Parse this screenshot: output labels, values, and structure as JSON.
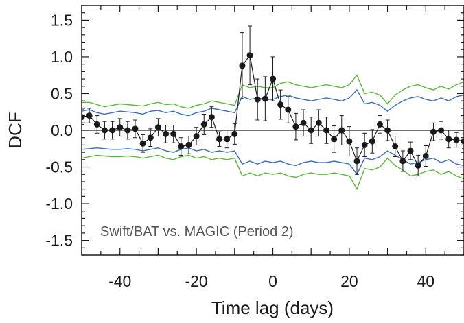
{
  "chart_data": {
    "type": "scatter",
    "xlabel": "Time lag (days)",
    "ylabel": "DCF",
    "annotation": "Swift/BAT vs. MAGIC (Period 2)",
    "xlim": [
      -50,
      50
    ],
    "ylim": [
      -1.7,
      1.7
    ],
    "x_ticks": [
      -40,
      -20,
      0,
      20,
      40
    ],
    "x_tick_labels": [
      "-40",
      "-20",
      "0",
      "20",
      "40"
    ],
    "y_ticks": [
      -1.5,
      -1.0,
      -0.5,
      0.0,
      0.5,
      1.0,
      1.5
    ],
    "y_tick_labels": [
      "-1.5",
      "-1.0",
      "-0.5",
      "0.0",
      "0.5",
      "1.0",
      "1.5"
    ],
    "zero_line": true,
    "grid": false,
    "colors": {
      "dcf": "#1a1a1a",
      "blue_band": "#3a6fc0",
      "green_band": "#5cb83a"
    },
    "dcf_points": [
      {
        "x": -50,
        "y": 0.18,
        "err": 0.1
      },
      {
        "x": -48,
        "y": 0.2,
        "err": 0.1
      },
      {
        "x": -46,
        "y": 0.08,
        "err": 0.12
      },
      {
        "x": -44,
        "y": 0.0,
        "err": 0.12
      },
      {
        "x": -42,
        "y": 0.0,
        "err": 0.12
      },
      {
        "x": -40,
        "y": 0.04,
        "err": 0.12
      },
      {
        "x": -38,
        "y": 0.0,
        "err": 0.12
      },
      {
        "x": -36,
        "y": 0.02,
        "err": 0.12
      },
      {
        "x": -34,
        "y": -0.18,
        "err": 0.12
      },
      {
        "x": -32,
        "y": -0.1,
        "err": 0.12
      },
      {
        "x": -30,
        "y": 0.04,
        "err": 0.12
      },
      {
        "x": -28,
        "y": -0.05,
        "err": 0.12
      },
      {
        "x": -26,
        "y": -0.05,
        "err": 0.12
      },
      {
        "x": -24,
        "y": -0.22,
        "err": 0.12
      },
      {
        "x": -22,
        "y": -0.2,
        "err": 0.12
      },
      {
        "x": -20,
        "y": -0.08,
        "err": 0.12
      },
      {
        "x": -18,
        "y": 0.08,
        "err": 0.14
      },
      {
        "x": -16,
        "y": 0.18,
        "err": 0.14
      },
      {
        "x": -14,
        "y": -0.12,
        "err": 0.1
      },
      {
        "x": -12,
        "y": -0.12,
        "err": 0.12
      },
      {
        "x": -10,
        "y": -0.05,
        "err": 0.14
      },
      {
        "x": -8,
        "y": 0.88,
        "err": 0.45
      },
      {
        "x": -6,
        "y": 1.02,
        "err": 0.4
      },
      {
        "x": -4,
        "y": 0.42,
        "err": 0.28
      },
      {
        "x": -2,
        "y": 0.43,
        "err": 0.3
      },
      {
        "x": 0,
        "y": 0.7,
        "err": 0.3
      },
      {
        "x": 2,
        "y": 0.35,
        "err": 0.2
      },
      {
        "x": 4,
        "y": 0.28,
        "err": 0.18
      },
      {
        "x": 6,
        "y": 0.05,
        "err": 0.18
      },
      {
        "x": 8,
        "y": 0.1,
        "err": 0.18
      },
      {
        "x": 10,
        "y": 0.0,
        "err": 0.18
      },
      {
        "x": 12,
        "y": 0.1,
        "err": 0.18
      },
      {
        "x": 14,
        "y": 0.0,
        "err": 0.18
      },
      {
        "x": 16,
        "y": -0.12,
        "err": 0.18
      },
      {
        "x": 18,
        "y": 0.0,
        "err": 0.2
      },
      {
        "x": 20,
        "y": -0.15,
        "err": 0.2
      },
      {
        "x": 22,
        "y": -0.42,
        "err": 0.18
      },
      {
        "x": 24,
        "y": -0.2,
        "err": 0.16
      },
      {
        "x": 26,
        "y": -0.15,
        "err": 0.16
      },
      {
        "x": 28,
        "y": 0.08,
        "err": 0.12
      },
      {
        "x": 30,
        "y": 0.0,
        "err": 0.14
      },
      {
        "x": 32,
        "y": -0.22,
        "err": 0.14
      },
      {
        "x": 34,
        "y": -0.42,
        "err": 0.14
      },
      {
        "x": 36,
        "y": -0.28,
        "err": 0.12
      },
      {
        "x": 38,
        "y": -0.48,
        "err": 0.14
      },
      {
        "x": 40,
        "y": -0.35,
        "err": 0.14
      },
      {
        "x": 42,
        "y": -0.02,
        "err": 0.12
      },
      {
        "x": 44,
        "y": 0.0,
        "err": 0.12
      },
      {
        "x": 46,
        "y": -0.12,
        "err": 0.12
      },
      {
        "x": 48,
        "y": -0.13,
        "err": 0.1
      },
      {
        "x": 50,
        "y": -0.15,
        "err": 0.1
      }
    ],
    "confidence_bands": [
      {
        "color": "green",
        "x": [
          -50,
          -48,
          -46,
          -44,
          -42,
          -40,
          -38,
          -36,
          -34,
          -32,
          -30,
          -28,
          -26,
          -24,
          -22,
          -20,
          -18,
          -16,
          -14,
          -12,
          -10,
          -8,
          -6,
          -4,
          -2,
          0,
          2,
          4,
          6,
          8,
          10,
          12,
          14,
          16,
          18,
          20,
          22,
          24,
          26,
          28,
          30,
          32,
          34,
          36,
          38,
          40,
          42,
          44,
          46,
          48,
          50
        ],
        "upper": [
          0.38,
          0.38,
          0.35,
          0.32,
          0.34,
          0.36,
          0.35,
          0.34,
          0.33,
          0.36,
          0.38,
          0.35,
          0.36,
          0.32,
          0.3,
          0.34,
          0.36,
          0.4,
          0.38,
          0.36,
          0.34,
          0.62,
          0.58,
          0.6,
          0.58,
          0.58,
          0.64,
          0.66,
          0.62,
          0.6,
          0.58,
          0.6,
          0.62,
          0.6,
          0.58,
          0.62,
          0.75,
          0.5,
          0.52,
          0.48,
          0.36,
          0.48,
          0.55,
          0.6,
          0.62,
          0.58,
          0.55,
          0.6,
          0.56,
          0.62,
          0.66
        ],
        "lower": [
          -0.38,
          -0.36,
          -0.34,
          -0.35,
          -0.36,
          -0.36,
          -0.35,
          -0.36,
          -0.38,
          -0.36,
          -0.34,
          -0.38,
          -0.4,
          -0.36,
          -0.34,
          -0.38,
          -0.36,
          -0.4,
          -0.38,
          -0.4,
          -0.38,
          -0.62,
          -0.58,
          -0.62,
          -0.58,
          -0.6,
          -0.58,
          -0.62,
          -0.64,
          -0.6,
          -0.58,
          -0.6,
          -0.6,
          -0.58,
          -0.6,
          -0.62,
          -0.8,
          -0.52,
          -0.54,
          -0.5,
          -0.38,
          -0.48,
          -0.54,
          -0.62,
          -0.6,
          -0.56,
          -0.54,
          -0.6,
          -0.56,
          -0.62,
          -0.66
        ]
      },
      {
        "color": "blue",
        "x": [
          -50,
          -48,
          -46,
          -44,
          -42,
          -40,
          -38,
          -36,
          -34,
          -32,
          -30,
          -28,
          -26,
          -24,
          -22,
          -20,
          -18,
          -16,
          -14,
          -12,
          -10,
          -8,
          -6,
          -4,
          -2,
          0,
          2,
          4,
          6,
          8,
          10,
          12,
          14,
          16,
          18,
          20,
          22,
          24,
          26,
          28,
          30,
          32,
          34,
          36,
          38,
          40,
          42,
          44,
          46,
          48,
          50
        ],
        "upper": [
          0.26,
          0.28,
          0.24,
          0.22,
          0.24,
          0.26,
          0.25,
          0.24,
          0.22,
          0.26,
          0.27,
          0.24,
          0.26,
          0.22,
          0.2,
          0.24,
          0.26,
          0.3,
          0.28,
          0.26,
          0.24,
          0.46,
          0.42,
          0.44,
          0.42,
          0.42,
          0.46,
          0.48,
          0.44,
          0.42,
          0.4,
          0.42,
          0.44,
          0.42,
          0.4,
          0.44,
          0.55,
          0.36,
          0.38,
          0.34,
          0.26,
          0.34,
          0.4,
          0.44,
          0.46,
          0.42,
          0.4,
          0.44,
          0.4,
          0.46,
          0.48
        ],
        "lower": [
          -0.26,
          -0.25,
          -0.24,
          -0.25,
          -0.26,
          -0.26,
          -0.25,
          -0.26,
          -0.28,
          -0.26,
          -0.24,
          -0.28,
          -0.3,
          -0.26,
          -0.24,
          -0.28,
          -0.26,
          -0.3,
          -0.28,
          -0.3,
          -0.28,
          -0.46,
          -0.42,
          -0.46,
          -0.42,
          -0.44,
          -0.42,
          -0.46,
          -0.48,
          -0.44,
          -0.42,
          -0.44,
          -0.44,
          -0.42,
          -0.44,
          -0.46,
          -0.6,
          -0.38,
          -0.4,
          -0.36,
          -0.28,
          -0.34,
          -0.4,
          -0.46,
          -0.44,
          -0.4,
          -0.38,
          -0.44,
          -0.4,
          -0.46,
          -0.48
        ]
      }
    ]
  }
}
